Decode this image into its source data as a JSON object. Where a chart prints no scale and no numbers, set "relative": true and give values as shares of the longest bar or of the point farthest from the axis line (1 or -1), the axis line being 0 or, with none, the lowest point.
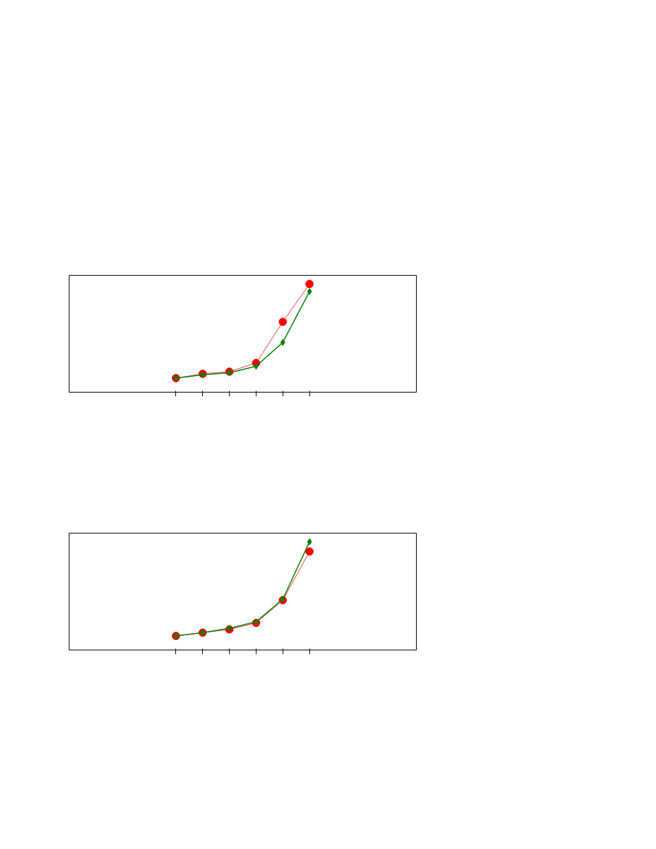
{
  "chart_data": [
    {
      "type": "line",
      "relative": true,
      "categories": [
        null,
        null,
        null,
        null,
        null,
        null
      ],
      "grid": false,
      "series": [
        {
          "color": "#ff0000",
          "marker": "circle",
          "values": [
            0.13,
            0.17,
            0.19,
            0.27,
            0.65,
            1
          ]
        },
        {
          "color": "#008000",
          "marker": "diamond",
          "values": [
            0.13,
            0.16,
            0.18,
            0.24,
            0.46,
            0.93
          ]
        }
      ]
    },
    {
      "type": "line",
      "relative": true,
      "categories": [
        null,
        null,
        null,
        null,
        null,
        null
      ],
      "grid": false,
      "series": [
        {
          "color": "#ff0000",
          "marker": "circle",
          "values": [
            0.13,
            0.16,
            0.19,
            0.25,
            0.46,
            0.91
          ]
        },
        {
          "color": "#008000",
          "marker": "diamond",
          "values": [
            0.13,
            0.16,
            0.2,
            0.26,
            0.47,
            1
          ]
        }
      ]
    }
  ]
}
